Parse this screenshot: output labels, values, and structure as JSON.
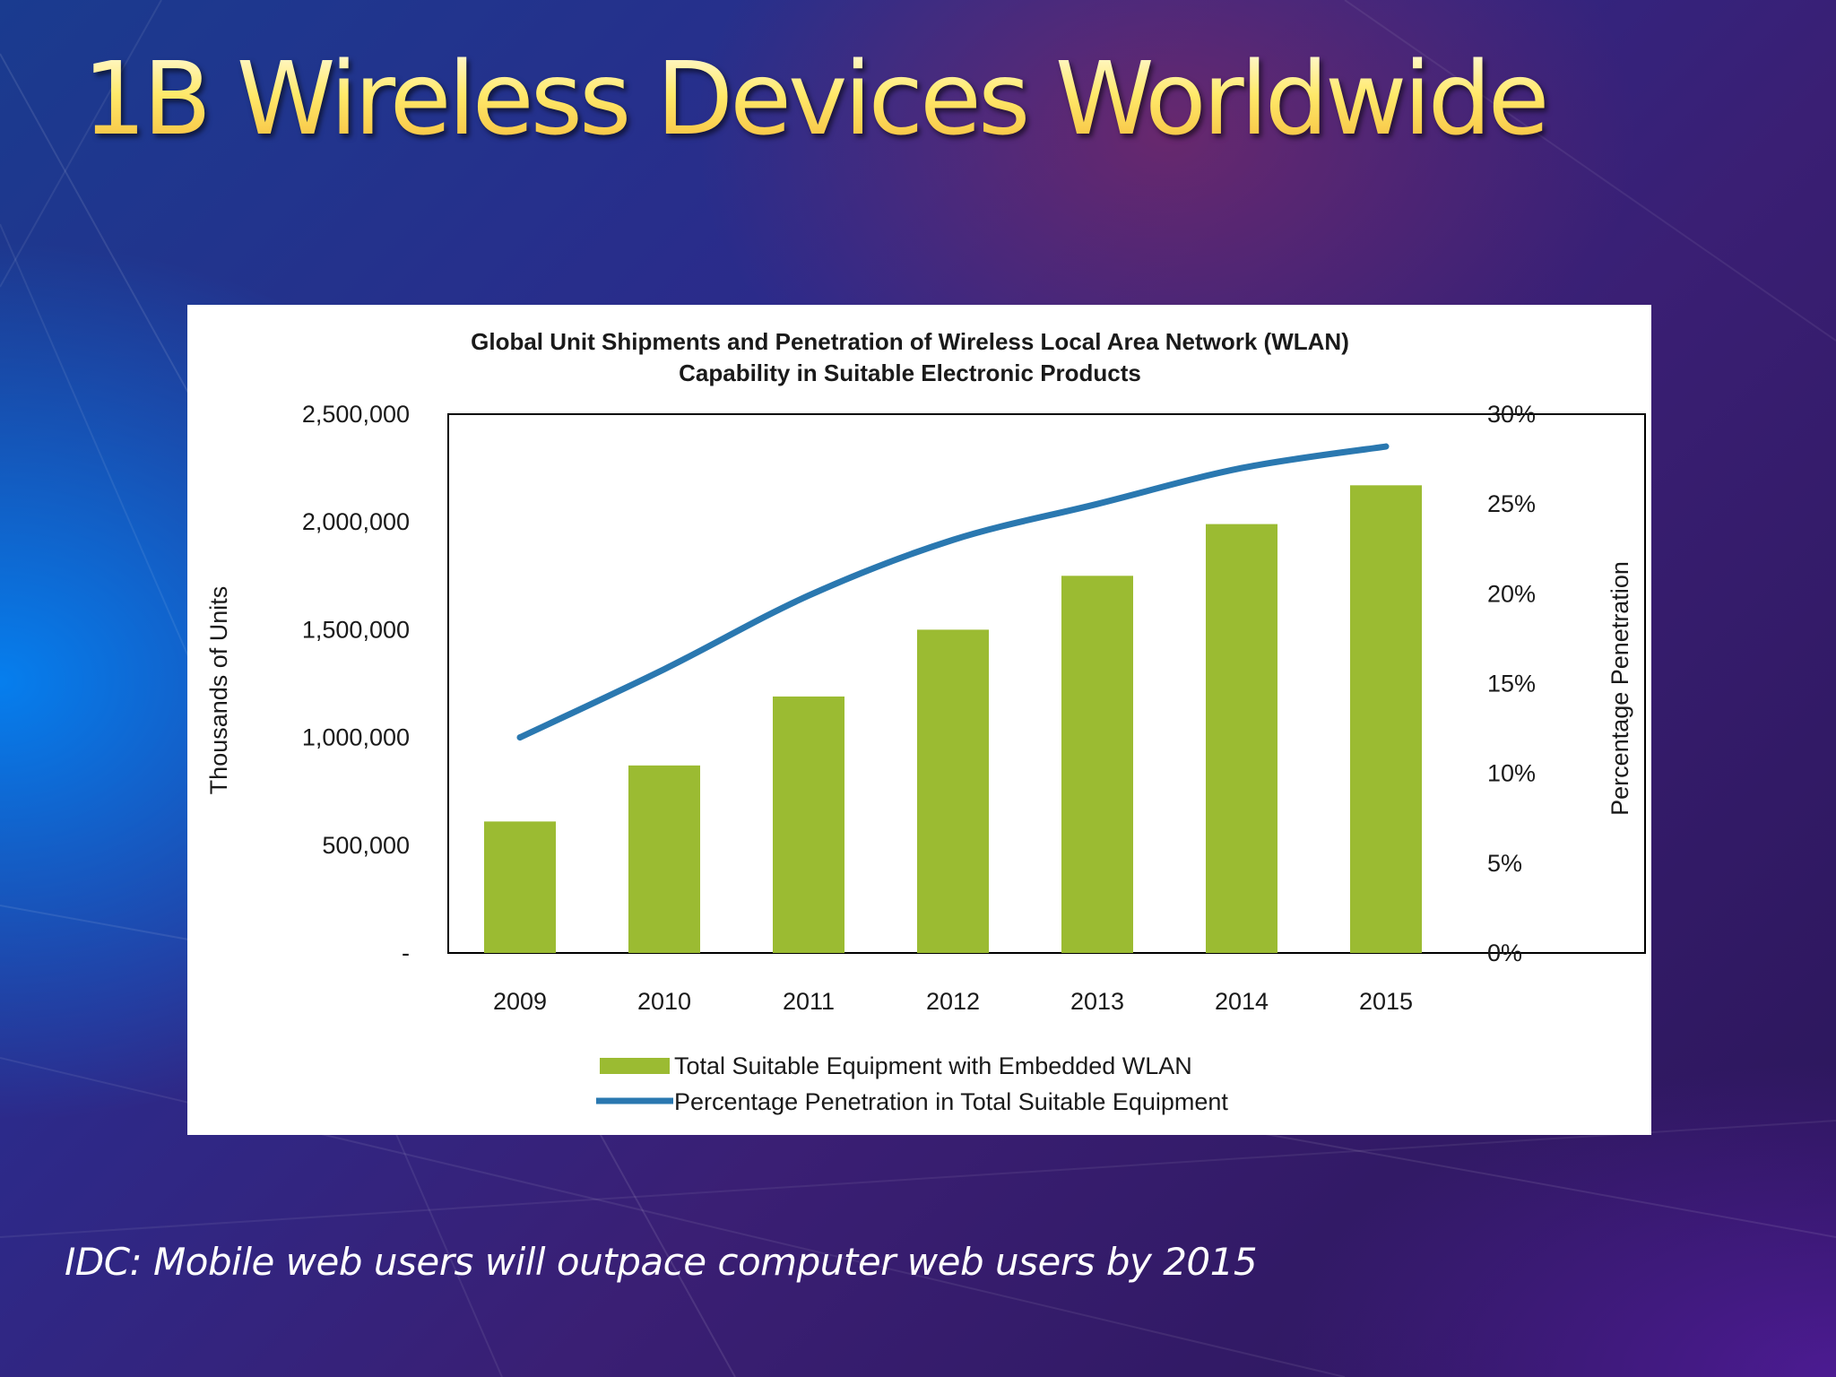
{
  "slide": {
    "title": "1B Wireless Devices Worldwide",
    "footnote": "IDC: Mobile web users will outpace computer web users by 2015"
  },
  "colors": {
    "bar": "#9bbb32",
    "line": "#2a78b0",
    "title": "#ffe96a"
  },
  "chart_data": {
    "type": "bar",
    "title": "Global Unit Shipments and Penetration of Wireless Local Area Network (WLAN)",
    "subtitle": "Capability in Suitable Electronic Products",
    "categories": [
      "2009",
      "2010",
      "2011",
      "2012",
      "2013",
      "2014",
      "2015"
    ],
    "ylabel": "Thousands of Units",
    "ylabel_right": "Percentage Penetration",
    "ylim": [
      0,
      2500000
    ],
    "ylim_right": [
      0,
      0.3
    ],
    "yticks": [
      {
        "value": 0,
        "label": "-"
      },
      {
        "value": 500000,
        "label": "500,000"
      },
      {
        "value": 1000000,
        "label": "1,000,000"
      },
      {
        "value": 1500000,
        "label": "1,500,000"
      },
      {
        "value": 2000000,
        "label": "2,000,000"
      },
      {
        "value": 2500000,
        "label": "2,500,000"
      }
    ],
    "yticks_right": [
      {
        "value": 0,
        "label": "0%"
      },
      {
        "value": 0.05,
        "label": "5%"
      },
      {
        "value": 0.1,
        "label": "10%"
      },
      {
        "value": 0.15,
        "label": "15%"
      },
      {
        "value": 0.2,
        "label": "20%"
      },
      {
        "value": 0.25,
        "label": "25%"
      },
      {
        "value": 0.3,
        "label": "30%"
      }
    ],
    "grid": false,
    "legend_position": "bottom",
    "series": [
      {
        "name": "Total Suitable Equipment with Embedded WLAN",
        "type": "bar",
        "axis": "left",
        "values": [
          610000,
          870000,
          1190000,
          1500000,
          1750000,
          1990000,
          2170000
        ]
      },
      {
        "name": "Percentage Penetration in Total Suitable Equipment",
        "type": "line",
        "axis": "right",
        "values": [
          0.12,
          0.158,
          0.199,
          0.23,
          0.25,
          0.27,
          0.282
        ]
      }
    ]
  }
}
